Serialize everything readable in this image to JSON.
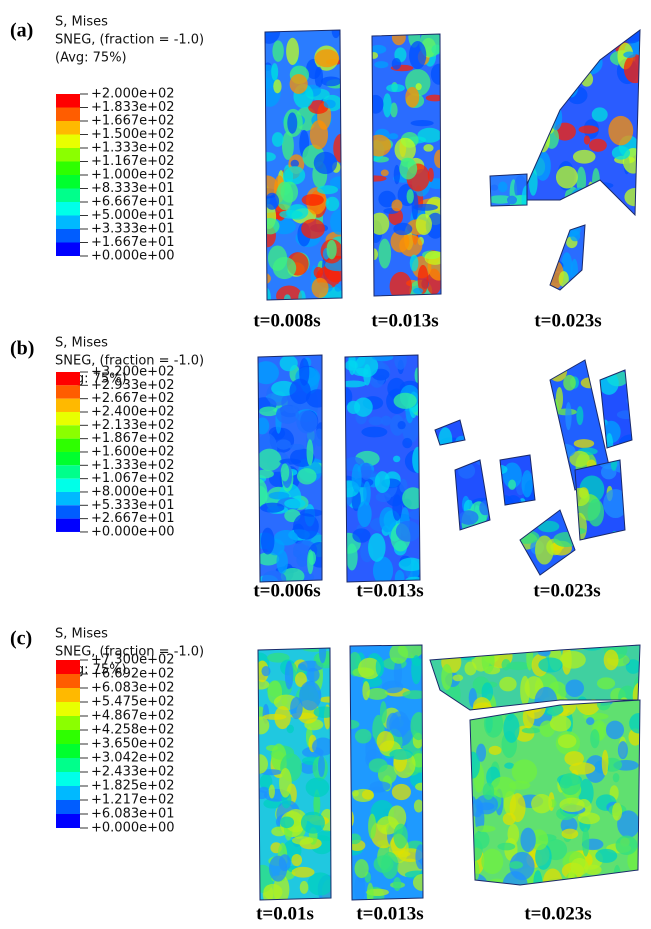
{
  "panels": [
    {
      "label": "(a)",
      "legend": {
        "title": [
          "S, Mises",
          "SNEG, (fraction = -1.0)",
          "(Avg: 75%)"
        ],
        "ticks": [
          "+2.000e+02",
          "+1.833e+02",
          "+1.667e+02",
          "+1.500e+02",
          "+1.333e+02",
          "+1.167e+02",
          "+1.000e+02",
          "+8.333e+01",
          "+6.667e+01",
          "+5.000e+01",
          "+3.333e+01",
          "+1.667e+01",
          "+0.000e+00"
        ]
      },
      "times": [
        "t=0.008s",
        "t=0.013s",
        "t=0.023s"
      ]
    },
    {
      "label": "(b)",
      "legend": {
        "title": [
          "S, Mises",
          "SNEG, (fraction = -1.0)",
          "(Avg: 75%)"
        ],
        "ticks": [
          "+3.200e+02",
          "+2.933e+02",
          "+2.667e+02",
          "+2.400e+02",
          "+2.133e+02",
          "+1.867e+02",
          "+1.600e+02",
          "+1.333e+02",
          "+1.067e+02",
          "+8.000e+01",
          "+5.333e+01",
          "+2.667e+01",
          "+0.000e+00"
        ]
      },
      "times": [
        "t=0.006s",
        "t=0.013s",
        "t=0.023s"
      ]
    },
    {
      "label": "(c)",
      "legend": {
        "title": [
          "S, Mises",
          "SNEG, (fraction = -1.0)",
          "(Avg: 75%)"
        ],
        "ticks": [
          "+7.300e+02",
          "+6.692e+02",
          "+6.083e+02",
          "+5.475e+02",
          "+4.867e+02",
          "+4.258e+02",
          "+3.650e+02",
          "+3.042e+02",
          "+2.433e+02",
          "+1.825e+02",
          "+1.217e+02",
          "+6.083e+01",
          "+0.000e+00"
        ]
      },
      "times": [
        "t=0.01s",
        "t=0.013s",
        "t=0.023s"
      ]
    }
  ]
}
